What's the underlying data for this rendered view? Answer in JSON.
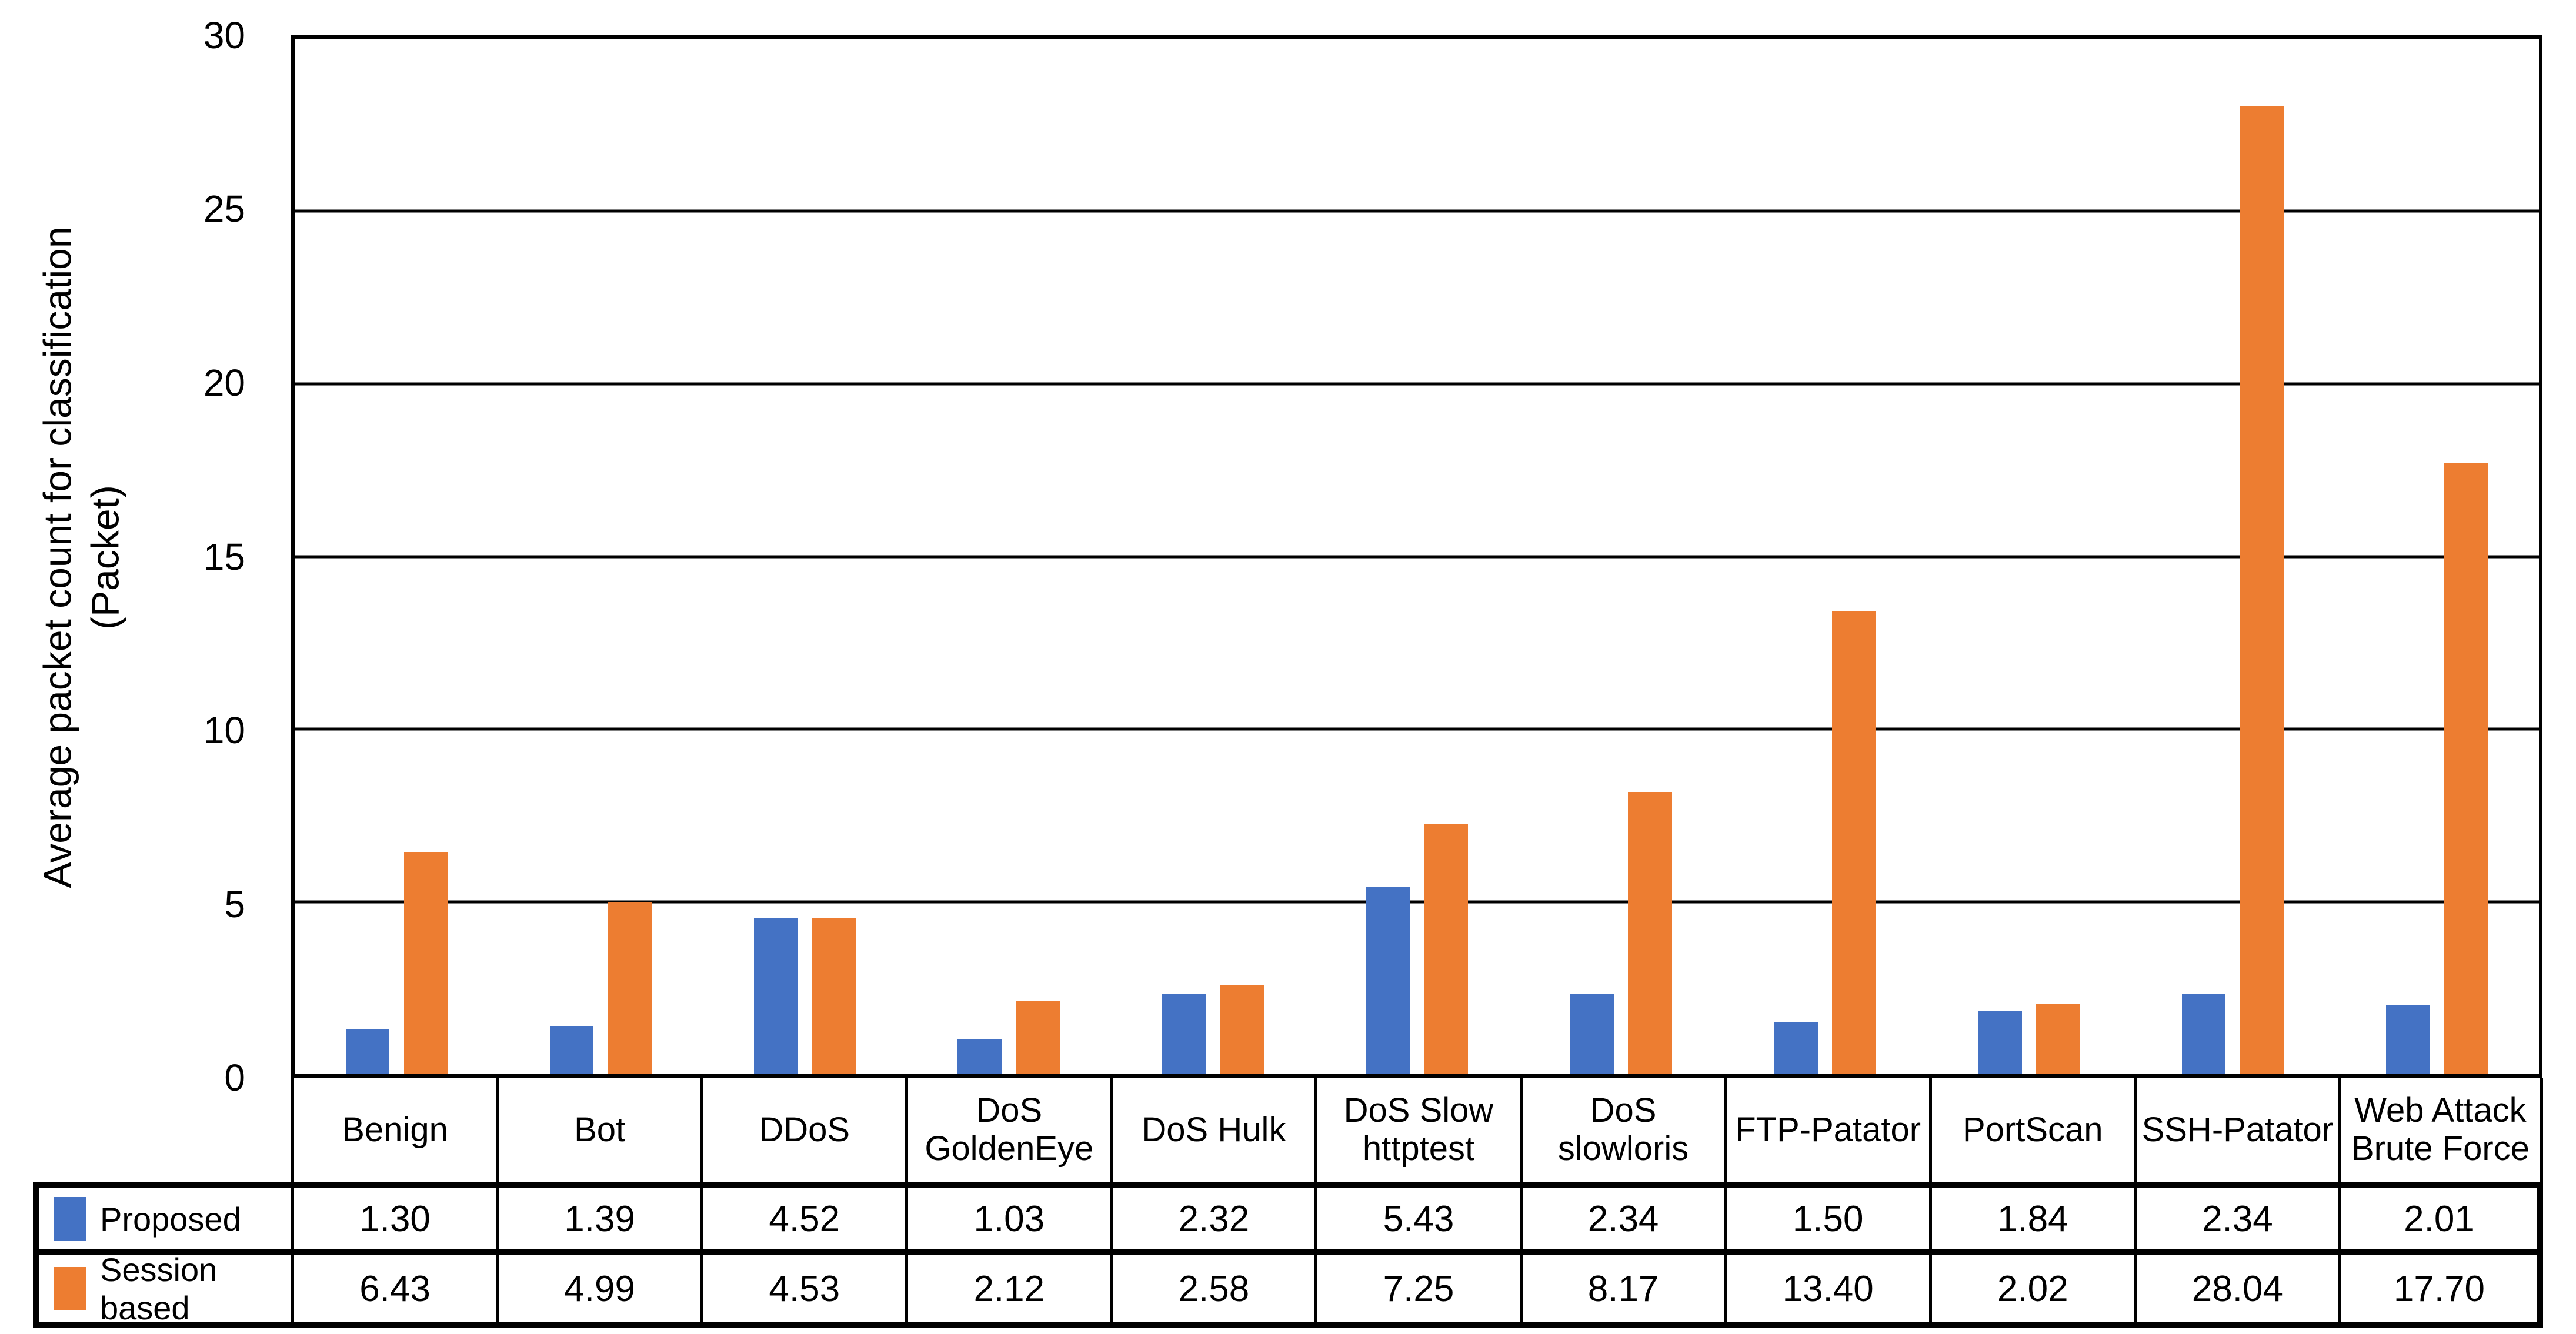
{
  "chart_data": {
    "type": "bar",
    "title": "",
    "categories": [
      "Benign",
      "Bot",
      "DDoS",
      "DoS GoldenEye",
      "DoS Hulk",
      "DoS Slow httptest",
      "DoS slowloris",
      "FTP-Patator",
      "PortScan",
      "SSH-Patator",
      "Web Attack Brute Force"
    ],
    "series": [
      {
        "name": "Proposed",
        "color": "#4472C4",
        "values": [
          1.3,
          1.39,
          4.52,
          1.03,
          2.32,
          5.43,
          2.34,
          1.5,
          1.84,
          2.34,
          2.01
        ]
      },
      {
        "name": "Session based",
        "color": "#ED7D31",
        "values": [
          6.43,
          4.99,
          4.53,
          2.12,
          2.58,
          7.25,
          8.17,
          13.4,
          2.02,
          28.04,
          17.7
        ]
      }
    ],
    "value_decimals": 2,
    "y_axis": {
      "title_line1": "Average packet count for classification",
      "title_line2": "(Packet)",
      "min": 0,
      "max": 30,
      "tick_step": 5,
      "tick_labels": [
        "30",
        "25",
        "20",
        "15",
        "10",
        "5",
        "0"
      ]
    },
    "grid": "horizontal gridlines every 5 units",
    "legend_position": "left column of data table below chart",
    "colors": {
      "proposed_series": "#4472C4",
      "session_based_series": "#ED7D31",
      "axis_and_grid_lines": "#000000",
      "text": "#000000",
      "background": "#FFFFFF"
    }
  }
}
